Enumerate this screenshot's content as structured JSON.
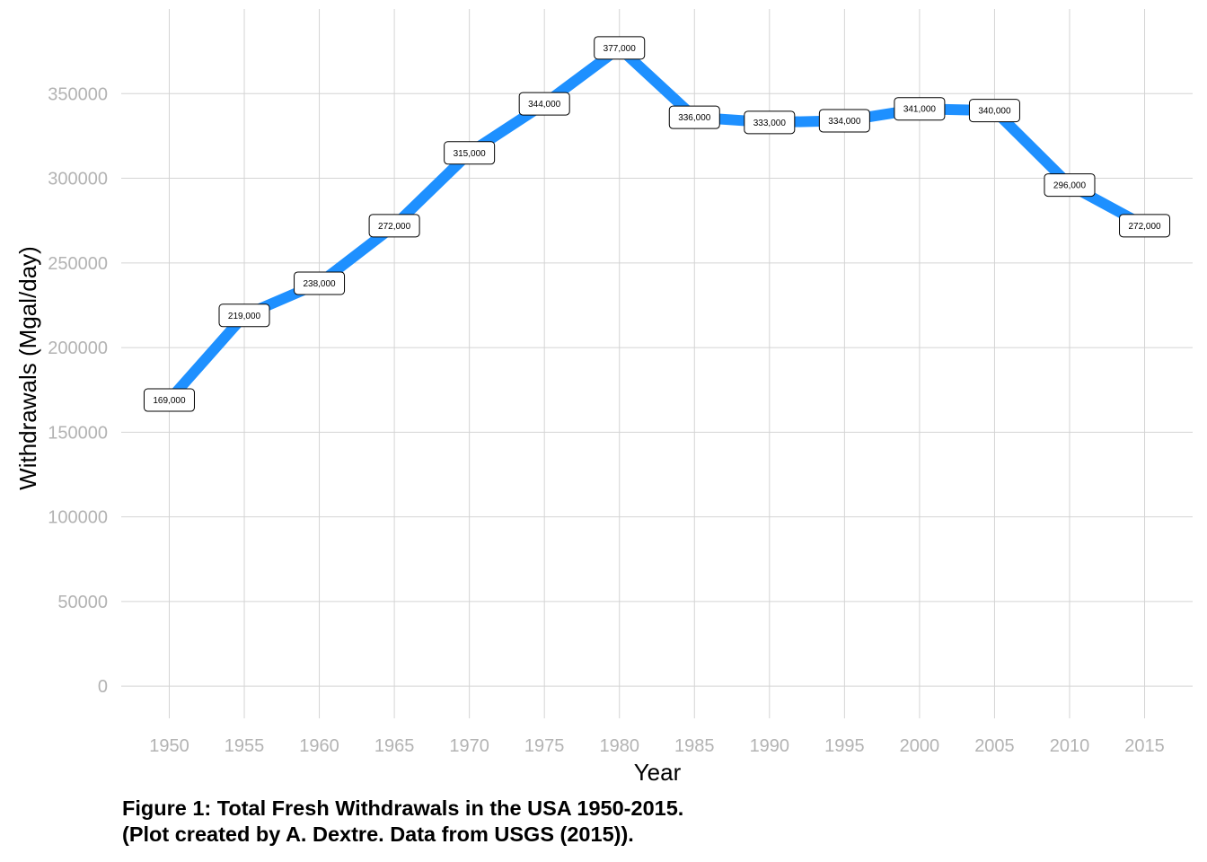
{
  "chart_data": {
    "type": "line",
    "xlabel": "Year",
    "ylabel": "Withdrawals (Mgal/day)",
    "xlim": [
      1946.8,
      2018.2
    ],
    "ylim": [
      -19000,
      400000
    ],
    "x_ticks": [
      1950,
      1955,
      1960,
      1965,
      1970,
      1975,
      1980,
      1985,
      1990,
      1995,
      2000,
      2005,
      2010,
      2015
    ],
    "y_ticks": [
      0,
      50000,
      100000,
      150000,
      200000,
      250000,
      300000,
      350000
    ],
    "grid": true,
    "legend": "none",
    "line_color": "#1E90FF",
    "series": [
      {
        "x": [
          1950,
          1955,
          1960,
          1965,
          1970,
          1975,
          1980,
          1985,
          1990,
          1995,
          2000,
          2005,
          2010,
          2015
        ],
        "values": [
          169000,
          219000,
          238000,
          272000,
          315000,
          344000,
          377000,
          336000,
          333000,
          334000,
          341000,
          340000,
          296000,
          272000
        ],
        "labels": [
          "169,000",
          "219,000",
          "238,000",
          "272,000",
          "315,000",
          "344,000",
          "377,000",
          "336,000",
          "333,000",
          "334,000",
          "341,000",
          "340,000",
          "296,000",
          "272,000"
        ]
      }
    ]
  },
  "caption": {
    "line1": "Figure 1: Total Fresh Withdrawals in the USA 1950-2015.",
    "line2": "(Plot created by A. Dextre. Data from USGS (2015))."
  }
}
